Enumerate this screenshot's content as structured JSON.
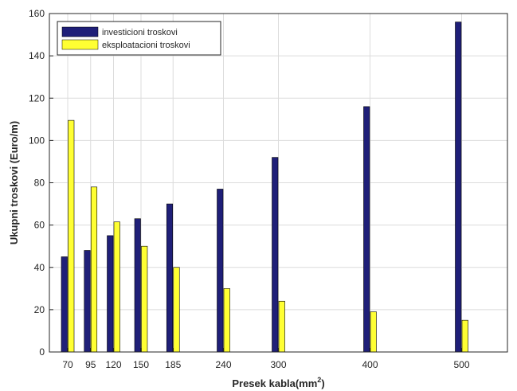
{
  "chart_data": {
    "type": "bar",
    "x": [
      70,
      95,
      120,
      150,
      185,
      240,
      300,
      400,
      500
    ],
    "xticks": [
      "70",
      "95",
      "120",
      "150",
      "185",
      "240",
      "300",
      "400",
      "500"
    ],
    "xlim": [
      50,
      550
    ],
    "ylim": [
      0,
      160
    ],
    "yticks": [
      "0",
      "20",
      "40",
      "60",
      "80",
      "100",
      "120",
      "140",
      "160"
    ],
    "xlabel_main": "Presek kabla(mm",
    "xlabel_sup": "2",
    "xlabel_tail": ")",
    "ylabel": "Ukupni troskovi (Euro/m)",
    "series": [
      {
        "name": "investicioni troskovi",
        "color": "#1f1f78",
        "values": [
          45,
          48,
          55,
          63,
          70,
          77,
          92,
          116,
          156
        ]
      },
      {
        "name": "eksploatacioni troskovi",
        "color": "#ffff33",
        "values": [
          109.5,
          78,
          61.5,
          50,
          40,
          30,
          24,
          19,
          15
        ]
      }
    ],
    "legend_position": "top-left",
    "grid": true
  }
}
